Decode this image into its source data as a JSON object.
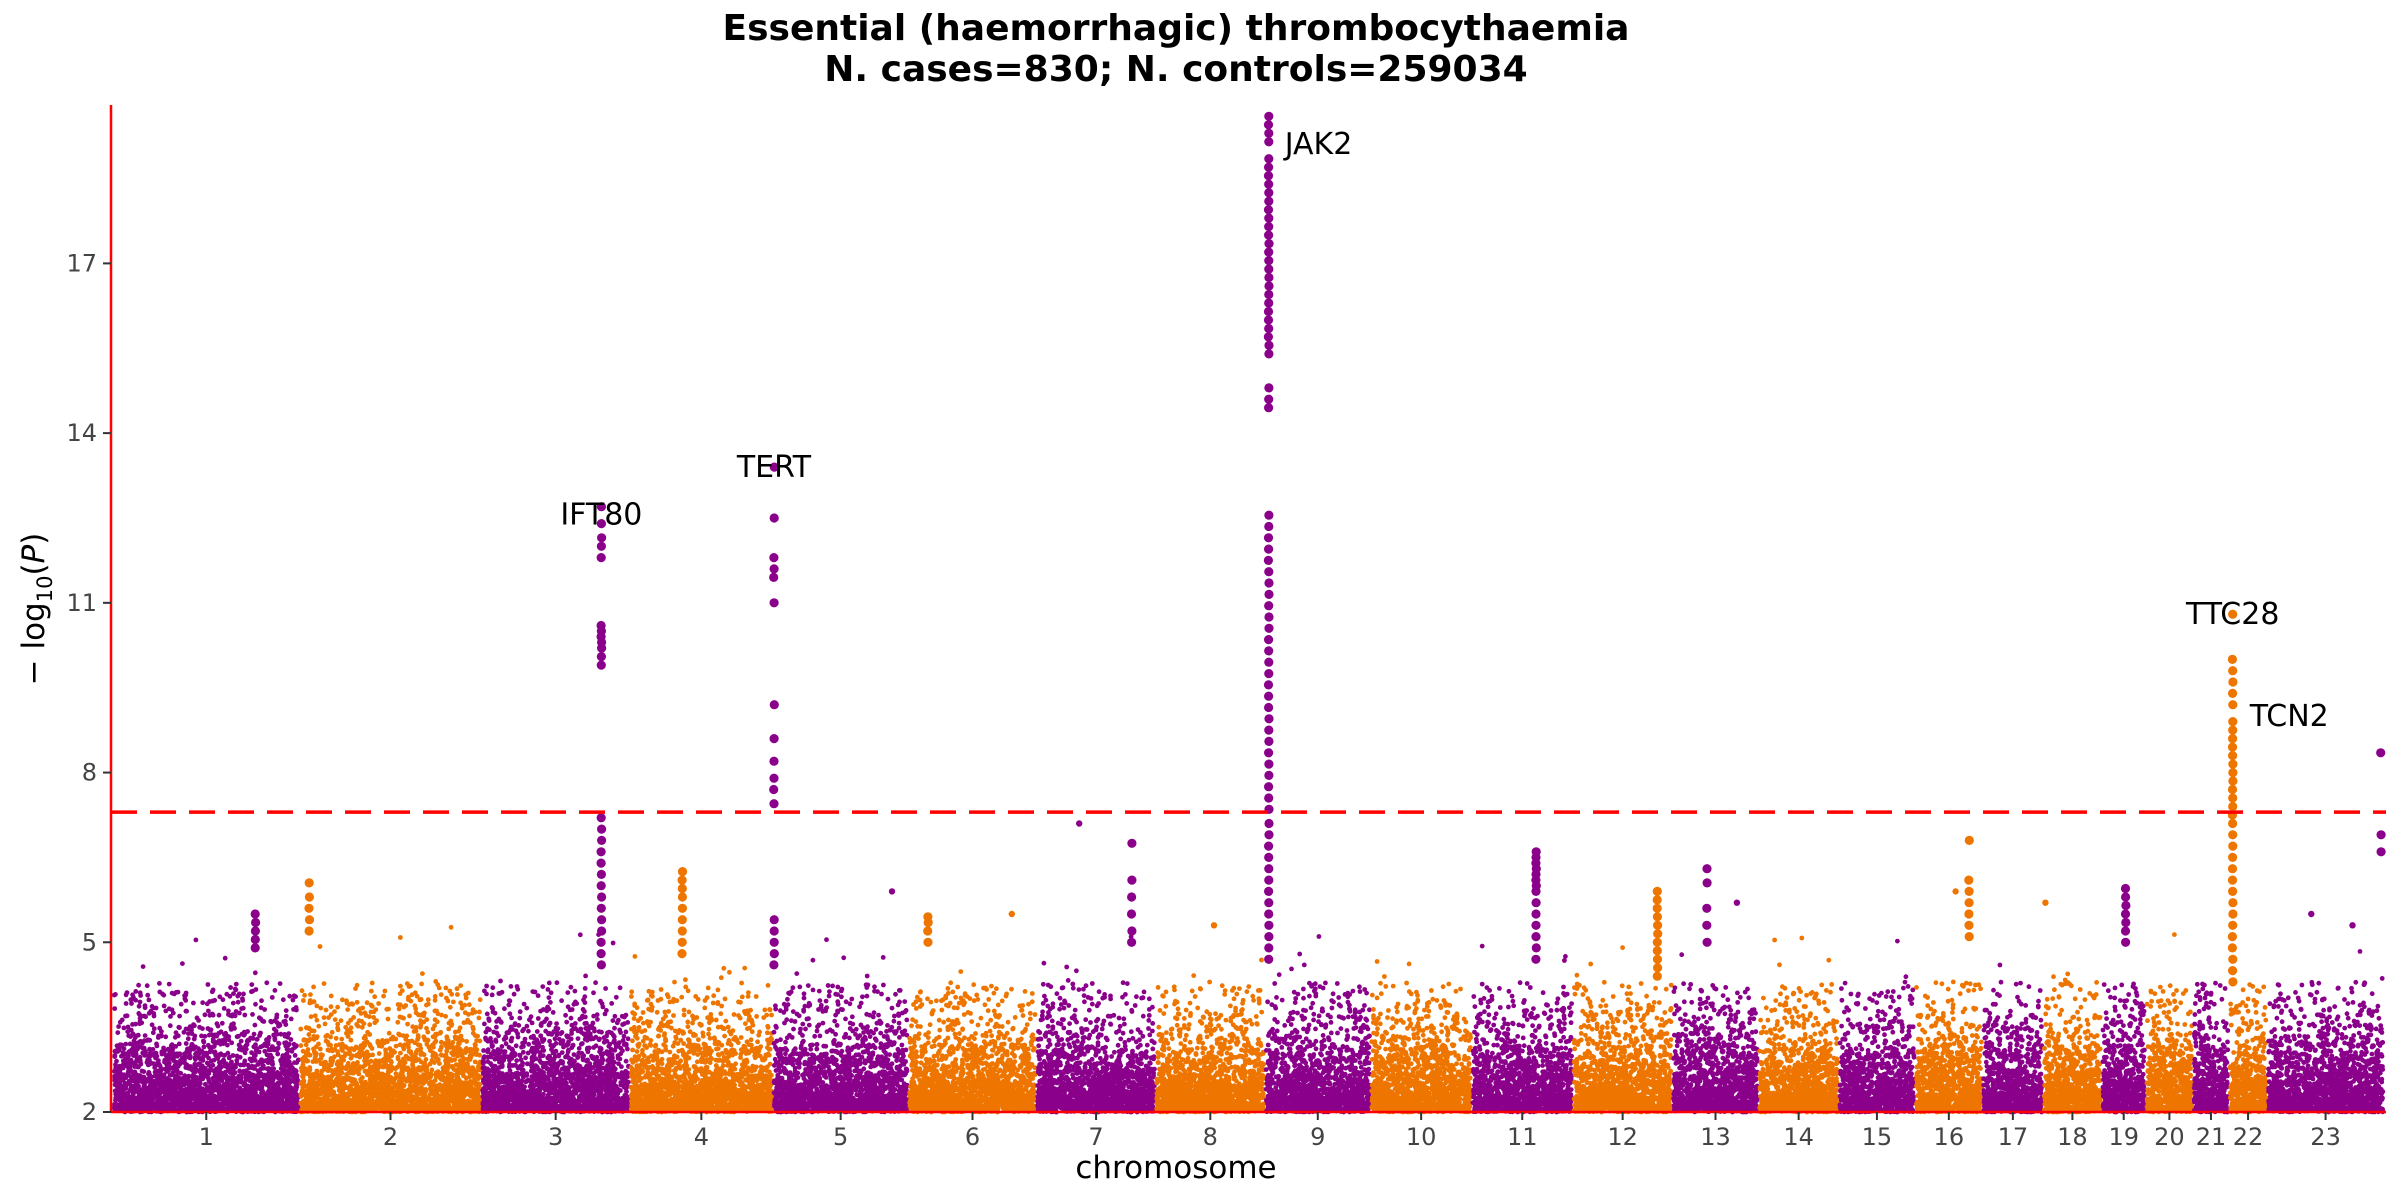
{
  "chart_data": {
    "type": "scatter",
    "subtype": "manhattan",
    "title": "Essential (haemorrhagic) thrombocythaemia",
    "subtitle": "N. cases=830; N. controls=259034",
    "xlabel": "chromosome",
    "ylabel": "− log10(P)",
    "ylim": [
      2,
      19.8
    ],
    "yticks": [
      2,
      5,
      8,
      11,
      14,
      17
    ],
    "significance_threshold": 7.3,
    "colors": {
      "odd": "#8b008b",
      "even": "#ee7600",
      "axis": "#ff0000",
      "threshold": "#ff0000"
    },
    "chromosomes": [
      {
        "label": "1",
        "start": 0,
        "length": 249
      },
      {
        "label": "2",
        "start": 249,
        "length": 243
      },
      {
        "label": "3",
        "start": 492,
        "length": 198
      },
      {
        "label": "4",
        "start": 690,
        "length": 191
      },
      {
        "label": "5",
        "start": 881,
        "length": 181
      },
      {
        "label": "6",
        "start": 1062,
        "length": 171
      },
      {
        "label": "7",
        "start": 1233,
        "length": 159
      },
      {
        "label": "8",
        "start": 1392,
        "length": 146
      },
      {
        "label": "9",
        "start": 1538,
        "length": 141
      },
      {
        "label": "10",
        "start": 1679,
        "length": 135
      },
      {
        "label": "11",
        "start": 1814,
        "length": 135
      },
      {
        "label": "12",
        "start": 1949,
        "length": 133
      },
      {
        "label": "13",
        "start": 2082,
        "length": 115
      },
      {
        "label": "14",
        "start": 2197,
        "length": 107
      },
      {
        "label": "15",
        "start": 2304,
        "length": 102
      },
      {
        "label": "16",
        "start": 2406,
        "length": 90
      },
      {
        "label": "17",
        "start": 2496,
        "length": 81
      },
      {
        "label": "18",
        "start": 2577,
        "length": 78
      },
      {
        "label": "19",
        "start": 2655,
        "length": 59
      },
      {
        "label": "20",
        "start": 2714,
        "length": 63
      },
      {
        "label": "21",
        "start": 2777,
        "length": 48
      },
      {
        "label": "22",
        "start": 2825,
        "length": 51
      },
      {
        "label": "23",
        "start": 2876,
        "length": 156
      }
    ],
    "peaks": [
      {
        "chrom": "3",
        "pos": 652,
        "values": [
          12.7,
          12.4,
          12.15,
          12.0,
          11.8,
          10.6,
          10.5,
          10.4,
          10.3,
          10.2,
          10.05,
          9.9,
          7.2,
          7.0,
          6.8,
          6.6,
          6.4,
          6.2,
          6.0,
          5.8,
          5.6,
          5.4,
          5.2,
          5.0,
          4.8,
          4.6
        ]
      },
      {
        "chrom": "5",
        "pos": 882.5,
        "values": [
          13.4,
          12.5,
          11.8,
          11.6,
          11.45,
          11.0,
          9.2,
          8.6,
          8.2,
          7.9,
          7.7,
          7.45,
          5.4,
          5.2,
          5.0,
          4.8,
          4.6
        ]
      },
      {
        "chrom": "9",
        "pos": 1543,
        "values": [
          19.6,
          19.45,
          19.3,
          19.15,
          18.85,
          18.7,
          18.55,
          18.4,
          18.25,
          18.1,
          17.95,
          17.8,
          17.65,
          17.5,
          17.35,
          17.2,
          17.05,
          16.9,
          16.75,
          16.6,
          16.45,
          16.3,
          16.15,
          16.0,
          15.85,
          15.7,
          15.55,
          15.4,
          14.8,
          14.6,
          14.45,
          12.55,
          12.35,
          12.15,
          11.95,
          11.75,
          11.55,
          11.35,
          11.15,
          10.95,
          10.75,
          10.55,
          10.35,
          10.15,
          9.95,
          9.75,
          9.55,
          9.35,
          9.15,
          8.95,
          8.75,
          8.55,
          8.35,
          8.15,
          7.95,
          7.75,
          7.55,
          7.35,
          7.1,
          6.9,
          6.7,
          6.5,
          6.3,
          6.1,
          5.9,
          5.7,
          5.5,
          5.3,
          5.1,
          4.9,
          4.7
        ]
      },
      {
        "chrom": "22",
        "pos": 2830,
        "values": [
          10.8,
          10.0,
          9.8,
          9.6,
          9.4,
          9.2,
          8.9,
          8.75,
          8.6,
          8.45,
          8.3,
          8.15,
          8.0,
          7.85,
          7.7,
          7.55,
          7.4,
          7.25,
          7.1,
          6.9,
          6.7,
          6.5,
          6.3,
          6.1,
          5.9,
          5.7,
          5.5,
          5.3,
          5.1,
          4.9,
          4.7,
          4.5,
          4.3
        ]
      },
      {
        "chrom": "23",
        "pos": 3028,
        "values": [
          8.35,
          6.9,
          6.6
        ]
      },
      {
        "chrom": "11",
        "pos": 1900,
        "values": [
          6.6,
          6.5,
          6.4,
          6.3,
          6.2,
          6.1,
          6.0,
          5.9,
          5.7,
          5.5,
          5.3,
          5.1,
          4.9,
          4.7
        ]
      },
      {
        "chrom": "12",
        "pos": 2062,
        "values": [
          5.9,
          5.75,
          5.6,
          5.45,
          5.3,
          5.15,
          5.0,
          4.85,
          4.7,
          4.55,
          4.4
        ]
      },
      {
        "chrom": "4",
        "pos": 760,
        "values": [
          6.25,
          6.1,
          5.95,
          5.8,
          5.6,
          5.4,
          5.2,
          5.0,
          4.8
        ]
      },
      {
        "chrom": "19",
        "pos": 2687,
        "values": [
          5.95,
          5.8,
          5.65,
          5.5,
          5.35,
          5.2,
          5.0
        ]
      },
      {
        "chrom": "16",
        "pos": 2478,
        "values": [
          6.8,
          6.1,
          5.9,
          5.7,
          5.5,
          5.3,
          5.1
        ]
      },
      {
        "chrom": "7",
        "pos": 1360,
        "values": [
          6.75,
          6.1,
          5.8,
          5.5,
          5.2,
          5.0
        ]
      },
      {
        "chrom": "1",
        "pos": 190,
        "values": [
          5.5,
          5.35,
          5.2,
          5.05,
          4.9
        ]
      },
      {
        "chrom": "2",
        "pos": 262,
        "values": [
          6.05,
          5.8,
          5.6,
          5.4,
          5.2
        ]
      },
      {
        "chrom": "13",
        "pos": 2128,
        "values": [
          6.3,
          6.05,
          5.6,
          5.3,
          5.0
        ]
      },
      {
        "chrom": "6",
        "pos": 1088,
        "values": [
          5.45,
          5.35,
          5.2,
          5.0
        ]
      }
    ],
    "scatter_singles": [
      {
        "pos": 1290,
        "value": 7.1
      },
      {
        "pos": 2580,
        "value": 5.7
      },
      {
        "pos": 2460,
        "value": 5.9
      },
      {
        "pos": 1040,
        "value": 5.9
      },
      {
        "pos": 1200,
        "value": 5.5
      },
      {
        "pos": 1470,
        "value": 5.3
      },
      {
        "pos": 2168,
        "value": 5.7
      },
      {
        "pos": 2990,
        "value": 5.3
      },
      {
        "pos": 2935,
        "value": 5.5
      }
    ],
    "annotations": [
      {
        "label": "JAK2",
        "pos": 1543,
        "value": 19.2
      },
      {
        "label": "TERT",
        "pos": 882.5,
        "value": 13.4
      },
      {
        "label": "IFT80",
        "pos": 652,
        "value": 12.7
      },
      {
        "label": "TTC28",
        "pos": 2830,
        "value": 10.8
      },
      {
        "label": "TCN2",
        "pos": 2830,
        "value": 9.05
      }
    ]
  }
}
